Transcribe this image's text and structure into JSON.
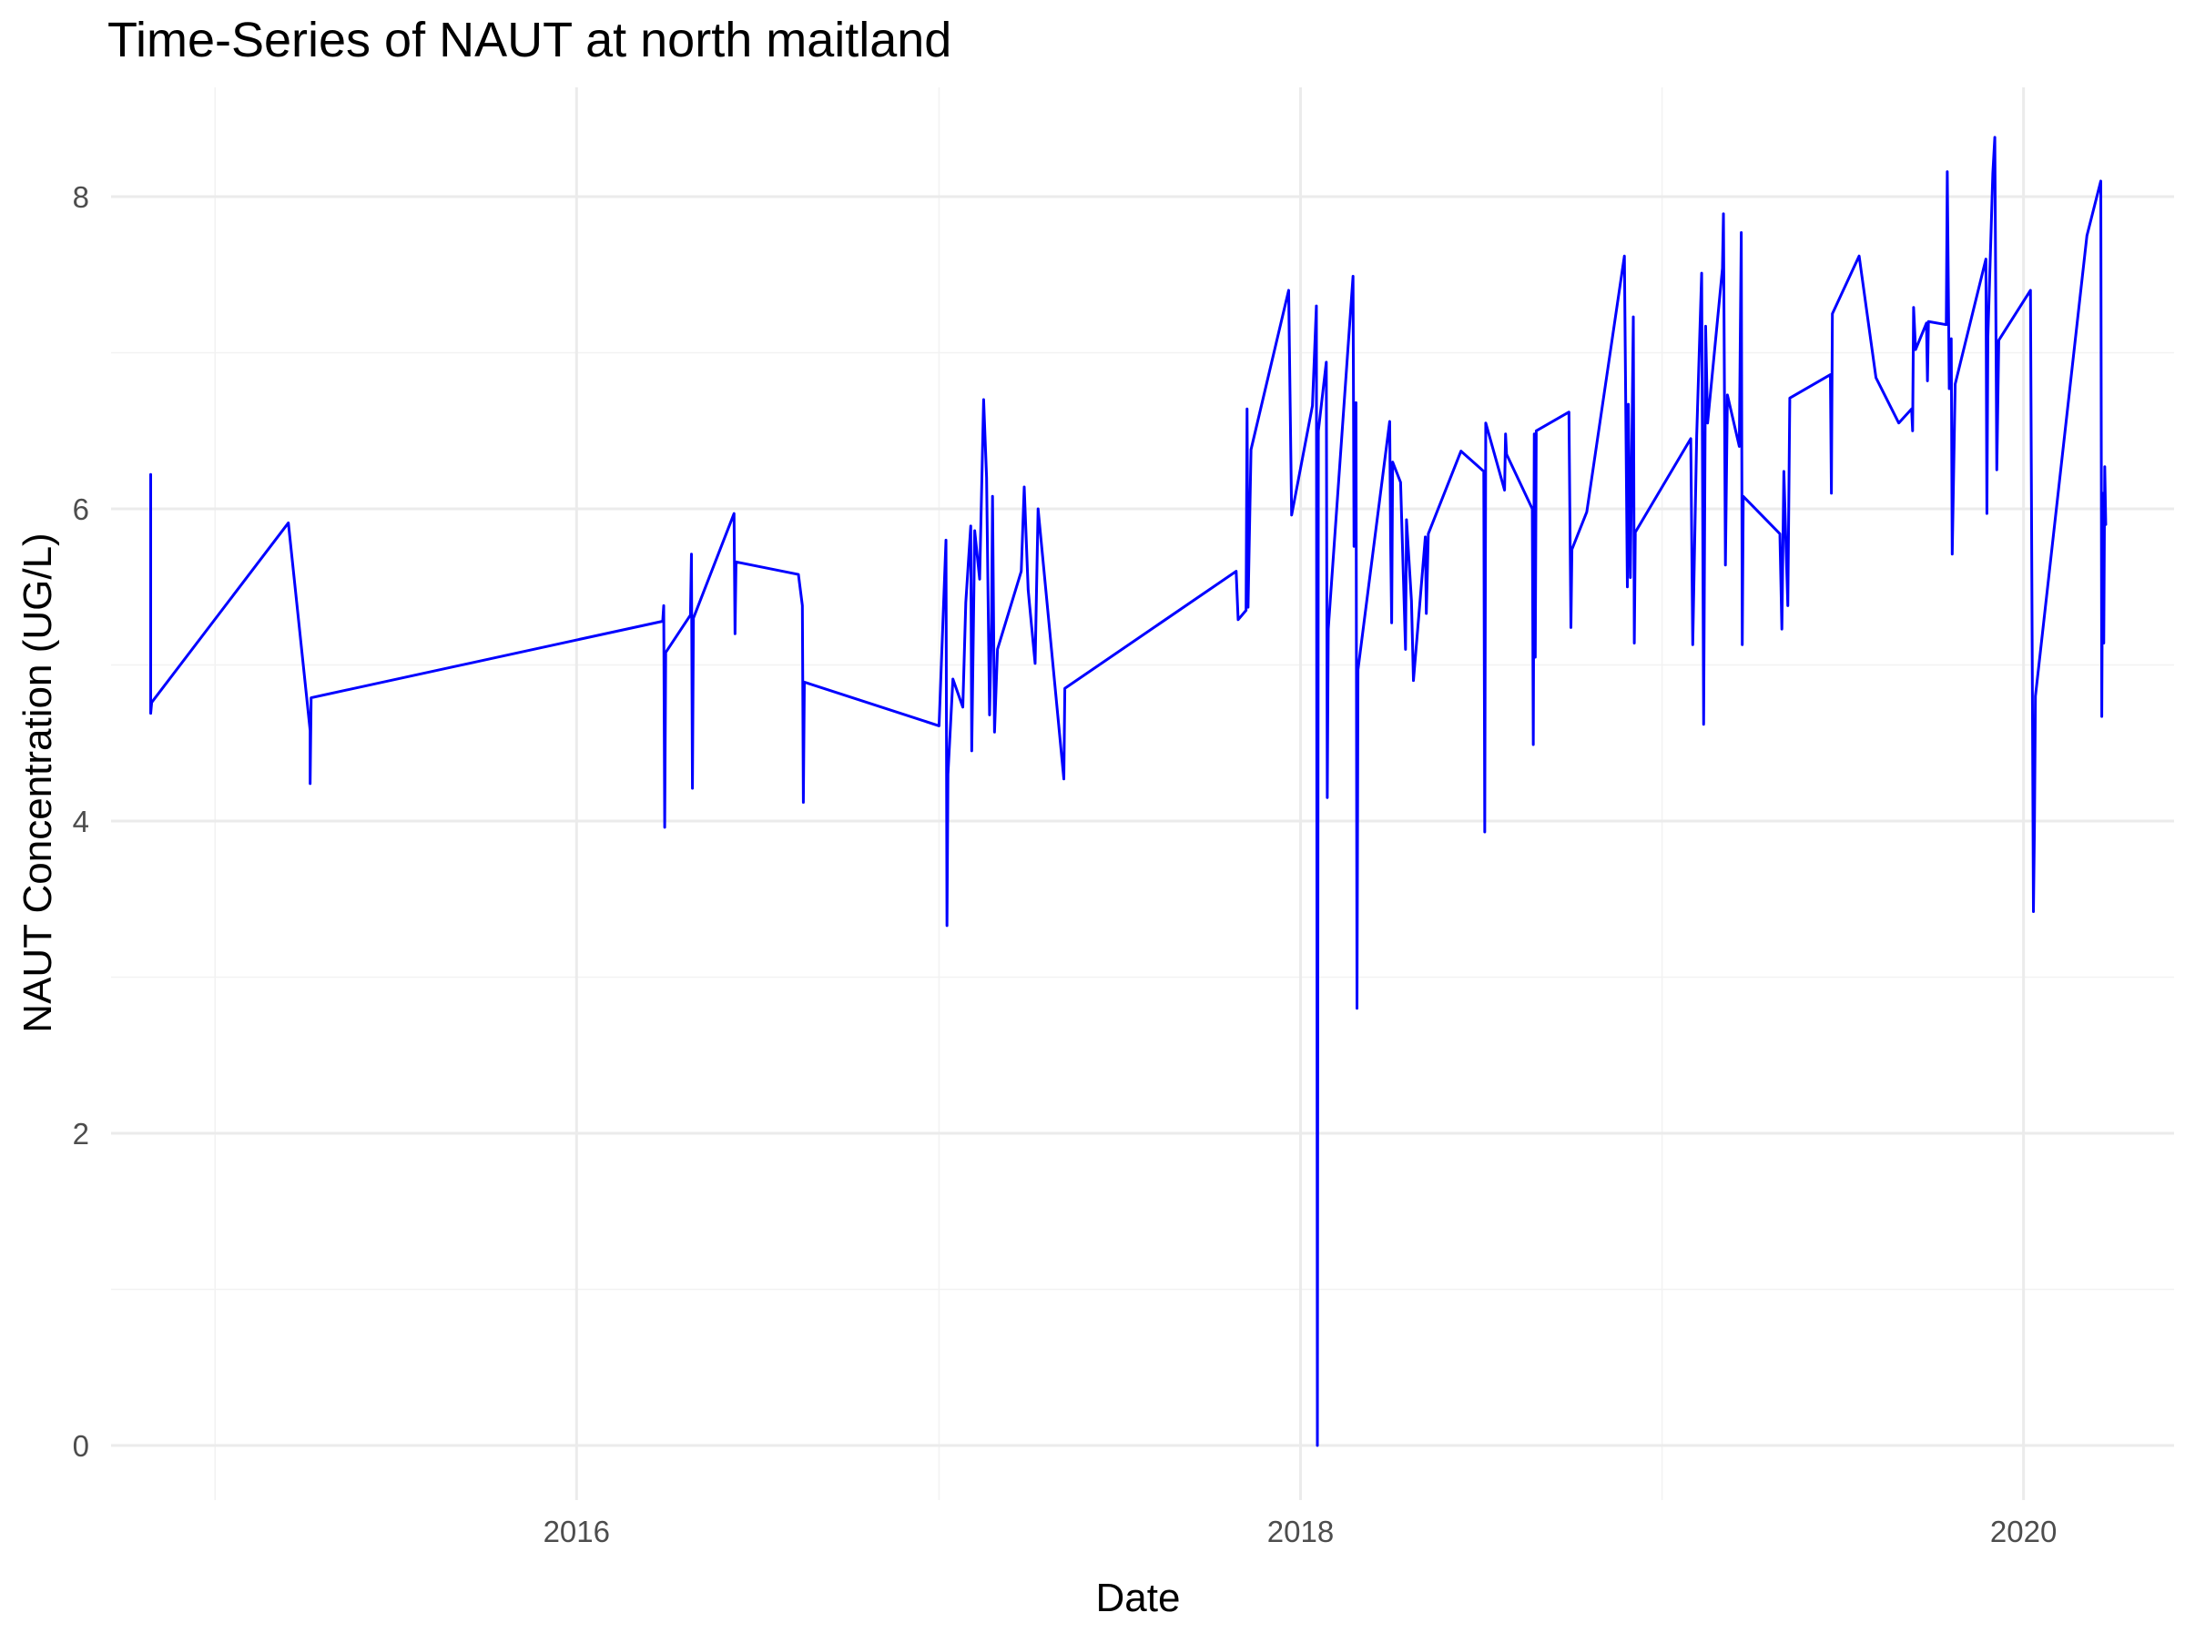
{
  "chart_data": {
    "type": "line",
    "title": "Time-Series of NAUT at north maitland",
    "xlabel": "Date",
    "ylabel": "NAUT Concentration (UG/L)",
    "x_type": "date",
    "xlim": [
      "2014-09-18",
      "2020-06-01"
    ],
    "ylim": [
      -0.35,
      8.7
    ],
    "x_ticks": [
      {
        "value": "2016-01-01",
        "label": "2016"
      },
      {
        "value": "2018-01-01",
        "label": "2018"
      },
      {
        "value": "2020-01-01",
        "label": "2020"
      }
    ],
    "x_minor_ticks": [
      "2015-01-01",
      "2017-01-01",
      "2019-01-01"
    ],
    "y_ticks": [
      {
        "value": 0,
        "label": "0"
      },
      {
        "value": 2,
        "label": "2"
      },
      {
        "value": 4,
        "label": "4"
      },
      {
        "value": 6,
        "label": "6"
      },
      {
        "value": 8,
        "label": "8"
      }
    ],
    "y_minor_ticks": [
      1,
      3,
      5,
      7
    ],
    "grid": true,
    "legend": "none",
    "series": [
      {
        "color": "#0000ff",
        "points": [
          [
            "2014-10-28",
            6.22
          ],
          [
            "2014-10-28",
            4.69
          ],
          [
            "2014-10-29",
            4.76
          ],
          [
            "2015-03-16",
            5.91
          ],
          [
            "2015-04-07",
            4.58
          ],
          [
            "2015-04-07",
            4.24
          ],
          [
            "2015-04-08",
            4.79
          ],
          [
            "2016-03-28",
            5.28
          ],
          [
            "2016-03-29",
            5.38
          ],
          [
            "2016-03-30",
            3.96
          ],
          [
            "2016-03-31",
            5.08
          ],
          [
            "2016-04-25",
            5.32
          ],
          [
            "2016-04-26",
            5.71
          ],
          [
            "2016-04-27",
            4.21
          ],
          [
            "2016-04-28",
            5.3
          ],
          [
            "2016-06-08",
            5.97
          ],
          [
            "2016-06-09",
            5.2
          ],
          [
            "2016-06-10",
            5.66
          ],
          [
            "2016-08-12",
            5.58
          ],
          [
            "2016-08-16",
            5.38
          ],
          [
            "2016-08-17",
            4.12
          ],
          [
            "2016-08-18",
            4.89
          ],
          [
            "2017-01-01",
            4.61
          ],
          [
            "2017-01-08",
            5.8
          ],
          [
            "2017-01-09",
            3.33
          ],
          [
            "2017-01-10",
            4.3
          ],
          [
            "2017-01-15",
            4.91
          ],
          [
            "2017-01-25",
            4.73
          ],
          [
            "2017-01-28",
            5.4
          ],
          [
            "2017-02-02",
            5.89
          ],
          [
            "2017-02-03",
            4.45
          ],
          [
            "2017-02-06",
            5.86
          ],
          [
            "2017-02-11",
            5.55
          ],
          [
            "2017-02-15",
            6.7
          ],
          [
            "2017-02-18",
            6.2
          ],
          [
            "2017-02-21",
            4.68
          ],
          [
            "2017-02-23",
            5.27
          ],
          [
            "2017-02-24",
            6.08
          ],
          [
            "2017-02-26",
            4.57
          ],
          [
            "2017-03-01",
            5.1
          ],
          [
            "2017-03-25",
            5.6
          ],
          [
            "2017-03-28",
            6.14
          ],
          [
            "2017-04-01",
            5.48
          ],
          [
            "2017-04-08",
            5.01
          ],
          [
            "2017-04-11",
            6.0
          ],
          [
            "2017-05-07",
            4.27
          ],
          [
            "2017-05-08",
            4.85
          ],
          [
            "2017-10-28",
            5.6
          ],
          [
            "2017-10-30",
            5.29
          ],
          [
            "2017-11-07",
            5.35
          ],
          [
            "2017-11-08",
            6.64
          ],
          [
            "2017-11-09",
            5.37
          ],
          [
            "2017-11-12",
            6.38
          ],
          [
            "2017-12-20",
            7.4
          ],
          [
            "2017-12-23",
            5.96
          ],
          [
            "2018-01-13",
            6.66
          ],
          [
            "2018-01-17",
            7.3
          ],
          [
            "2018-01-18",
            0.0
          ],
          [
            "2018-01-19",
            6.5
          ],
          [
            "2018-01-27",
            6.94
          ],
          [
            "2018-01-28",
            4.15
          ],
          [
            "2018-01-29",
            5.23
          ],
          [
            "2018-02-23",
            7.49
          ],
          [
            "2018-02-24",
            5.76
          ],
          [
            "2018-02-26",
            6.68
          ],
          [
            "2018-02-27",
            2.8
          ],
          [
            "2018-02-28",
            4.97
          ],
          [
            "2018-04-01",
            6.56
          ],
          [
            "2018-04-02",
            5.78
          ],
          [
            "2018-04-03",
            5.27
          ],
          [
            "2018-04-04",
            6.3
          ],
          [
            "2018-04-12",
            6.17
          ],
          [
            "2018-04-17",
            5.1
          ],
          [
            "2018-04-18",
            5.93
          ],
          [
            "2018-04-23",
            5.41
          ],
          [
            "2018-04-25",
            4.9
          ],
          [
            "2018-05-07",
            5.82
          ],
          [
            "2018-05-08",
            5.33
          ],
          [
            "2018-05-10",
            5.84
          ],
          [
            "2018-06-12",
            6.37
          ],
          [
            "2018-07-05",
            6.24
          ],
          [
            "2018-07-06",
            3.93
          ],
          [
            "2018-07-07",
            6.55
          ],
          [
            "2018-07-26",
            6.12
          ],
          [
            "2018-07-27",
            6.48
          ],
          [
            "2018-07-28",
            6.35
          ],
          [
            "2018-08-23",
            6.0
          ],
          [
            "2018-08-24",
            4.49
          ],
          [
            "2018-08-25",
            6.48
          ],
          [
            "2018-08-26",
            5.05
          ],
          [
            "2018-08-27",
            6.5
          ],
          [
            "2018-09-29",
            6.62
          ],
          [
            "2018-10-01",
            5.24
          ],
          [
            "2018-10-02",
            5.74
          ],
          [
            "2018-10-17",
            5.98
          ],
          [
            "2018-11-24",
            7.62
          ],
          [
            "2018-11-27",
            5.5
          ],
          [
            "2018-11-28",
            6.67
          ],
          [
            "2018-11-30",
            5.56
          ],
          [
            "2018-12-03",
            7.23
          ],
          [
            "2018-12-04",
            5.14
          ],
          [
            "2018-12-05",
            5.85
          ],
          [
            "2019-01-30",
            6.45
          ],
          [
            "2019-02-01",
            5.13
          ],
          [
            "2019-02-05",
            6.47
          ],
          [
            "2019-02-10",
            7.51
          ],
          [
            "2019-02-12",
            4.62
          ],
          [
            "2019-02-14",
            7.17
          ],
          [
            "2019-02-16",
            6.55
          ],
          [
            "2019-03-03",
            7.54
          ],
          [
            "2019-03-04",
            7.89
          ],
          [
            "2019-03-06",
            5.64
          ],
          [
            "2019-03-08",
            6.73
          ],
          [
            "2019-03-20",
            6.4
          ],
          [
            "2019-03-22",
            7.77
          ],
          [
            "2019-03-23",
            5.13
          ],
          [
            "2019-03-24",
            6.08
          ],
          [
            "2019-04-30",
            5.84
          ],
          [
            "2019-05-02",
            5.23
          ],
          [
            "2019-05-04",
            6.24
          ],
          [
            "2019-05-06",
            5.8
          ],
          [
            "2019-05-08",
            5.38
          ],
          [
            "2019-05-10",
            6.71
          ],
          [
            "2019-06-20",
            6.86
          ],
          [
            "2019-06-21",
            6.1
          ],
          [
            "2019-06-22",
            7.25
          ],
          [
            "2019-07-19",
            7.62
          ],
          [
            "2019-08-05",
            6.84
          ],
          [
            "2019-08-28",
            6.55
          ],
          [
            "2019-09-10",
            6.64
          ],
          [
            "2019-09-11",
            6.5
          ],
          [
            "2019-09-12",
            7.29
          ],
          [
            "2019-09-14",
            7.02
          ],
          [
            "2019-09-25",
            7.19
          ],
          [
            "2019-09-26",
            6.82
          ],
          [
            "2019-09-27",
            7.2
          ],
          [
            "2019-10-15",
            7.18
          ],
          [
            "2019-10-16",
            8.16
          ],
          [
            "2019-10-18",
            6.77
          ],
          [
            "2019-10-20",
            7.09
          ],
          [
            "2019-10-21",
            5.71
          ],
          [
            "2019-10-24",
            6.8
          ],
          [
            "2019-11-24",
            7.6
          ],
          [
            "2019-11-25",
            5.97
          ],
          [
            "2019-11-26",
            7.1
          ],
          [
            "2019-12-01",
            8.15
          ],
          [
            "2019-12-03",
            8.38
          ],
          [
            "2019-12-05",
            6.25
          ],
          [
            "2019-12-07",
            7.08
          ],
          [
            "2020-01-08",
            7.4
          ],
          [
            "2020-01-10",
            4.74
          ],
          [
            "2020-01-11",
            3.42
          ],
          [
            "2020-01-12",
            3.95
          ],
          [
            "2020-01-13",
            4.8
          ],
          [
            "2020-03-05",
            7.75
          ],
          [
            "2020-03-19",
            8.1
          ],
          [
            "2020-03-20",
            4.67
          ],
          [
            "2020-03-21",
            6.1
          ],
          [
            "2020-03-22",
            5.14
          ],
          [
            "2020-03-23",
            6.27
          ],
          [
            "2020-03-24",
            5.9
          ]
        ]
      }
    ]
  }
}
